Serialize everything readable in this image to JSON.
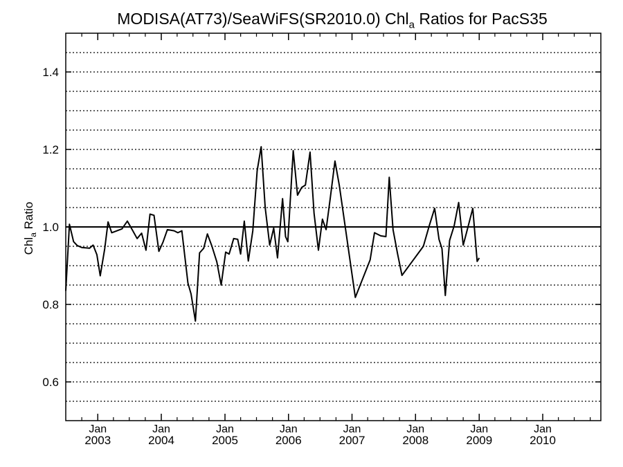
{
  "title": {
    "prefix": "MODISA(AT73)/SeaWiFS(SR2010.0)  Chl",
    "sub": "a",
    "suffix": " Ratios for PacS35"
  },
  "chart_data": {
    "type": "line",
    "title": "MODISA(AT73)/SeaWiFS(SR2010.0)  Chla Ratios for PacS35",
    "ylabel": "Chla Ratio",
    "ylabel_main": "Chl",
    "ylabel_sub": "a",
    "ylabel_rest": " Ratio",
    "xlabel": "",
    "xlim": [
      "2002-07-01",
      "2010-12-01"
    ],
    "ylim": [
      0.5,
      1.5
    ],
    "yticks": [
      0.6,
      0.8,
      1.0,
      1.2,
      1.4
    ],
    "ytick_labels": [
      "0.6",
      "0.8",
      "1.0",
      "1.2",
      "1.4"
    ],
    "xticks": [
      {
        "date": "2003-01-01",
        "month": "Jan",
        "year": "2003"
      },
      {
        "date": "2004-01-01",
        "month": "Jan",
        "year": "2004"
      },
      {
        "date": "2005-01-01",
        "month": "Jan",
        "year": "2005"
      },
      {
        "date": "2006-01-01",
        "month": "Jan",
        "year": "2006"
      },
      {
        "date": "2007-01-01",
        "month": "Jan",
        "year": "2007"
      },
      {
        "date": "2008-01-01",
        "month": "Jan",
        "year": "2008"
      },
      {
        "date": "2009-01-01",
        "month": "Jan",
        "year": "2009"
      },
      {
        "date": "2010-01-01",
        "month": "Jan",
        "year": "2010"
      }
    ],
    "reference_line": 1.0,
    "grid": "horizontal dotted every 0.05",
    "series": [
      {
        "points": [
          [
            "2002-07-01",
            0.835
          ],
          [
            "2002-07-22",
            1.007
          ],
          [
            "2002-08-15",
            0.962
          ],
          [
            "2002-09-05",
            0.952
          ],
          [
            "2002-10-01",
            0.947
          ],
          [
            "2002-11-15",
            0.945
          ],
          [
            "2002-12-05",
            0.953
          ],
          [
            "2002-12-27",
            0.928
          ],
          [
            "2003-01-15",
            0.874
          ],
          [
            "2003-02-10",
            0.944
          ],
          [
            "2003-03-01",
            1.013
          ],
          [
            "2003-03-22",
            0.985
          ],
          [
            "2003-05-20",
            0.995
          ],
          [
            "2003-06-20",
            1.015
          ],
          [
            "2003-07-15",
            0.995
          ],
          [
            "2003-08-15",
            0.97
          ],
          [
            "2003-09-10",
            0.984
          ],
          [
            "2003-10-05",
            0.94
          ],
          [
            "2003-10-28",
            1.033
          ],
          [
            "2003-11-20",
            1.03
          ],
          [
            "2003-12-18",
            0.937
          ],
          [
            "2004-01-10",
            0.96
          ],
          [
            "2004-02-05",
            0.993
          ],
          [
            "2004-03-15",
            0.99
          ],
          [
            "2004-04-05",
            0.985
          ],
          [
            "2004-04-28",
            0.99
          ],
          [
            "2004-06-02",
            0.855
          ],
          [
            "2004-06-20",
            0.827
          ],
          [
            "2004-07-15",
            0.757
          ],
          [
            "2004-08-08",
            0.933
          ],
          [
            "2004-09-01",
            0.945
          ],
          [
            "2004-09-22",
            0.982
          ],
          [
            "2004-10-18",
            0.95
          ],
          [
            "2004-11-15",
            0.91
          ],
          [
            "2004-12-10",
            0.85
          ],
          [
            "2005-01-05",
            0.935
          ],
          [
            "2005-01-25",
            0.93
          ],
          [
            "2005-02-20",
            0.97
          ],
          [
            "2005-03-15",
            0.968
          ],
          [
            "2005-04-01",
            0.93
          ],
          [
            "2005-04-22",
            1.015
          ],
          [
            "2005-05-15",
            0.912
          ],
          [
            "2005-06-10",
            0.99
          ],
          [
            "2005-07-05",
            1.145
          ],
          [
            "2005-07-28",
            1.207
          ],
          [
            "2005-08-20",
            1.05
          ],
          [
            "2005-09-15",
            0.953
          ],
          [
            "2005-10-08",
            0.997
          ],
          [
            "2005-10-30",
            0.92
          ],
          [
            "2005-11-28",
            1.073
          ],
          [
            "2005-12-15",
            0.975
          ],
          [
            "2005-12-28",
            0.962
          ],
          [
            "2006-01-28",
            1.197
          ],
          [
            "2006-02-22",
            1.082
          ],
          [
            "2006-03-18",
            1.102
          ],
          [
            "2006-04-08",
            1.108
          ],
          [
            "2006-05-05",
            1.193
          ],
          [
            "2006-05-28",
            1.035
          ],
          [
            "2006-06-22",
            0.94
          ],
          [
            "2006-07-15",
            1.02
          ],
          [
            "2006-08-05",
            0.993
          ],
          [
            "2006-08-28",
            1.07
          ],
          [
            "2006-09-25",
            1.17
          ],
          [
            "2006-10-20",
            1.107
          ],
          [
            "2006-12-05",
            0.963
          ],
          [
            "2007-01-20",
            0.818
          ],
          [
            "2007-04-15",
            0.915
          ],
          [
            "2007-05-10",
            0.985
          ],
          [
            "2007-06-15",
            0.977
          ],
          [
            "2007-07-15",
            0.975
          ],
          [
            "2007-08-03",
            1.128
          ],
          [
            "2007-08-25",
            0.993
          ],
          [
            "2007-09-20",
            0.93
          ],
          [
            "2007-10-15",
            0.875
          ],
          [
            "2008-02-15",
            0.95
          ],
          [
            "2008-03-20",
            1.003
          ],
          [
            "2008-04-20",
            1.048
          ],
          [
            "2008-05-15",
            0.968
          ],
          [
            "2008-06-01",
            0.944
          ],
          [
            "2008-06-20",
            0.823
          ],
          [
            "2008-07-15",
            0.965
          ],
          [
            "2008-08-10",
            1.003
          ],
          [
            "2008-09-05",
            1.063
          ],
          [
            "2008-10-01",
            0.953
          ],
          [
            "2008-10-20",
            0.985
          ],
          [
            "2008-11-25",
            1.048
          ],
          [
            "2008-12-20",
            0.911
          ],
          [
            "2009-01-01",
            0.92
          ]
        ]
      }
    ]
  }
}
